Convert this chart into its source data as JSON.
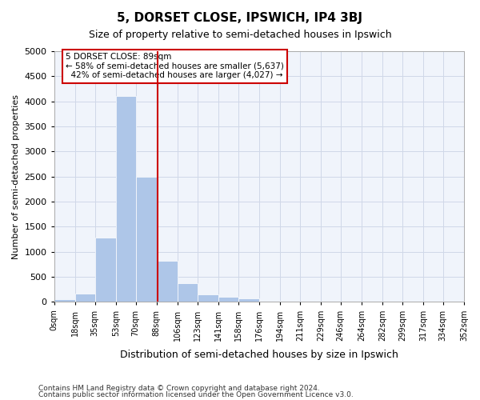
{
  "title": "5, DORSET CLOSE, IPSWICH, IP4 3BJ",
  "subtitle": "Size of property relative to semi-detached houses in Ipswich",
  "xlabel": "Distribution of semi-detached houses by size in Ipswich",
  "ylabel": "Number of semi-detached properties",
  "footnote1": "Contains HM Land Registry data © Crown copyright and database right 2024.",
  "footnote2": "Contains public sector information licensed under the Open Government Licence v3.0.",
  "property_size": 89,
  "property_label": "5 DORSET CLOSE: 89sqm",
  "pct_smaller": 58,
  "n_smaller": 5637,
  "pct_larger": 42,
  "n_larger": 4027,
  "bar_edges": [
    0,
    18,
    35,
    53,
    70,
    88,
    106,
    123,
    141,
    158,
    176,
    194,
    211,
    229,
    246,
    264,
    282,
    299,
    317,
    334,
    352
  ],
  "bar_heights": [
    50,
    170,
    1280,
    4100,
    2500,
    820,
    370,
    155,
    100,
    65,
    30,
    15,
    8,
    5,
    3,
    2,
    1,
    1,
    1,
    1
  ],
  "bar_color": "#aec6e8",
  "bar_edge_color": "#aec6e8",
  "vline_color": "#cc0000",
  "vline_x": 89,
  "annotation_box_color": "#cc0000",
  "ylim": [
    0,
    5000
  ],
  "xlim": [
    0,
    352
  ],
  "grid_color": "#d0d8e8",
  "background_color": "#f0f4fb",
  "tick_labels": [
    "0sqm",
    "18sqm",
    "35sqm",
    "53sqm",
    "70sqm",
    "88sqm",
    "106sqm",
    "123sqm",
    "141sqm",
    "158sqm",
    "176sqm",
    "194sqm",
    "211sqm",
    "229sqm",
    "246sqm",
    "264sqm",
    "282sqm",
    "299sqm",
    "317sqm",
    "334sqm",
    "352sqm"
  ]
}
